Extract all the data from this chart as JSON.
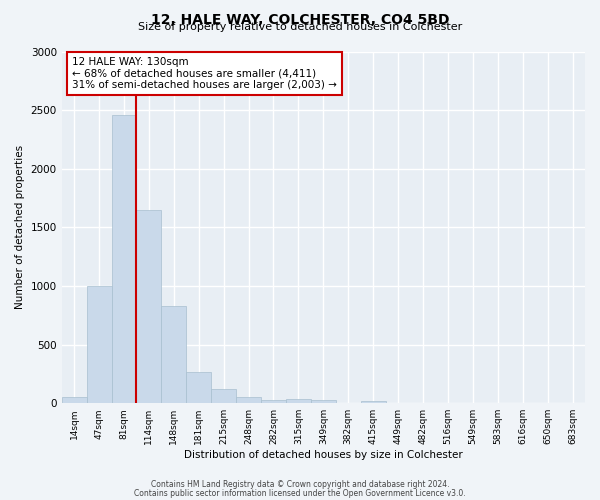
{
  "title": "12, HALE WAY, COLCHESTER, CO4 5BD",
  "subtitle": "Size of property relative to detached houses in Colchester",
  "xlabel": "Distribution of detached houses by size in Colchester",
  "ylabel": "Number of detached properties",
  "footer_line1": "Contains HM Land Registry data © Crown copyright and database right 2024.",
  "footer_line2": "Contains public sector information licensed under the Open Government Licence v3.0.",
  "bin_labels": [
    "14sqm",
    "47sqm",
    "81sqm",
    "114sqm",
    "148sqm",
    "181sqm",
    "215sqm",
    "248sqm",
    "282sqm",
    "315sqm",
    "349sqm",
    "382sqm",
    "415sqm",
    "449sqm",
    "482sqm",
    "516sqm",
    "549sqm",
    "583sqm",
    "616sqm",
    "650sqm",
    "683sqm"
  ],
  "bar_values": [
    55,
    1000,
    2460,
    1650,
    830,
    270,
    120,
    50,
    25,
    40,
    30,
    0,
    20,
    0,
    0,
    0,
    0,
    0,
    0,
    0,
    0
  ],
  "bar_color": "#c9d9ea",
  "bar_edge_color": "#a8bfcf",
  "vline_color": "#cc0000",
  "annotation_line1": "12 HALE WAY: 130sqm",
  "annotation_line2": "← 68% of detached houses are smaller (4,411)",
  "annotation_line3": "31% of semi-detached houses are larger (2,003) →",
  "ylim": [
    0,
    3000
  ],
  "yticks": [
    0,
    500,
    1000,
    1500,
    2000,
    2500,
    3000
  ],
  "bg_color": "#f0f4f8",
  "plot_bg_color": "#e8eef4",
  "grid_color": "white",
  "vline_position": 2.5
}
